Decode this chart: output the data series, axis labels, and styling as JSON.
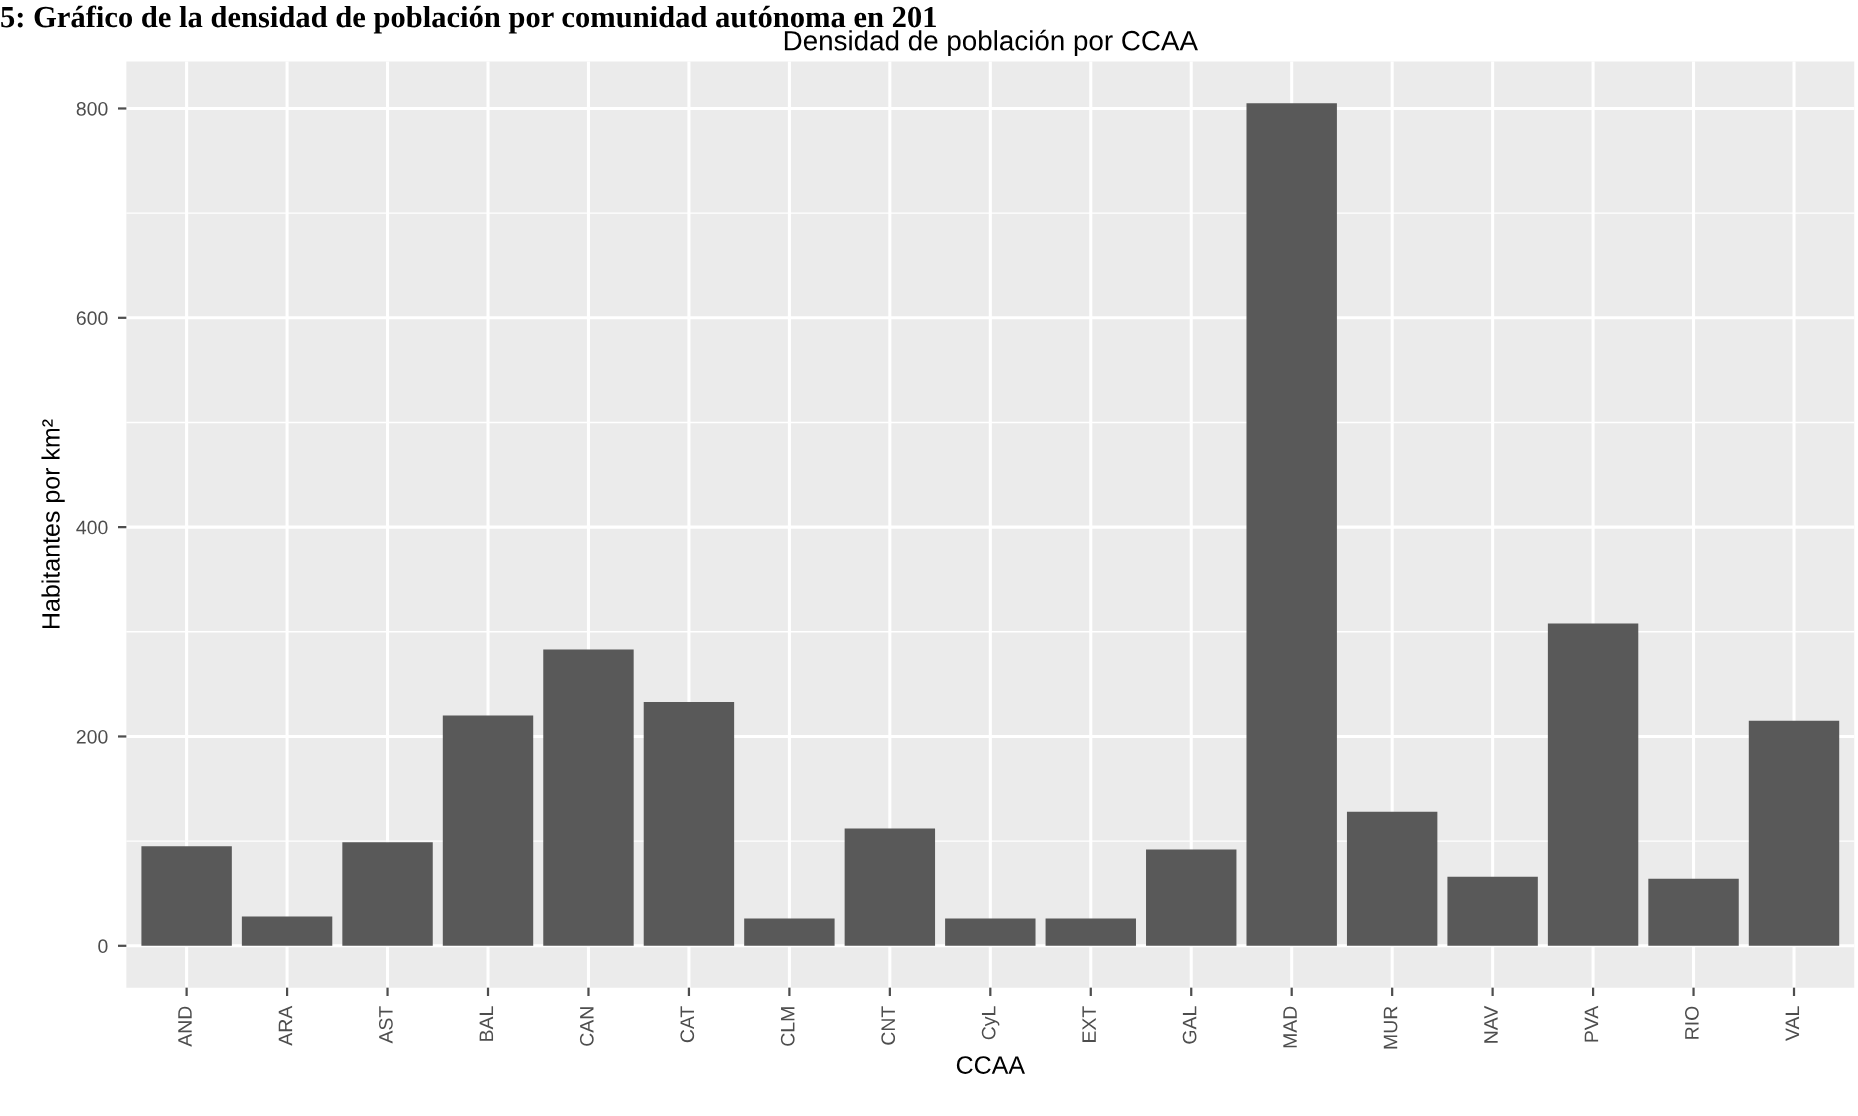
{
  "chart_data": {
    "type": "bar",
    "title": "Densidad de población por CCAA",
    "xlabel": "CCAA",
    "ylabel": "Habitantes por km²",
    "annotations": [
      "5: Gráfico de la densidad de población por comunidad autónoma en 201"
    ],
    "categories": [
      "AND",
      "ARA",
      "AST",
      "BAL",
      "CAN",
      "CAT",
      "CLM",
      "CNT",
      "CyL",
      "EXT",
      "GAL",
      "MAD",
      "MUR",
      "NAV",
      "PVA",
      "RIO",
      "VAL"
    ],
    "values": [
      95,
      28,
      99,
      220,
      283,
      233,
      26,
      112,
      26,
      26,
      92,
      805,
      128,
      66,
      308,
      64,
      215
    ],
    "color": "#595959",
    "ylim": [
      -40,
      845
    ],
    "yticks": [
      0,
      200,
      400,
      600,
      800
    ],
    "grid": true
  }
}
